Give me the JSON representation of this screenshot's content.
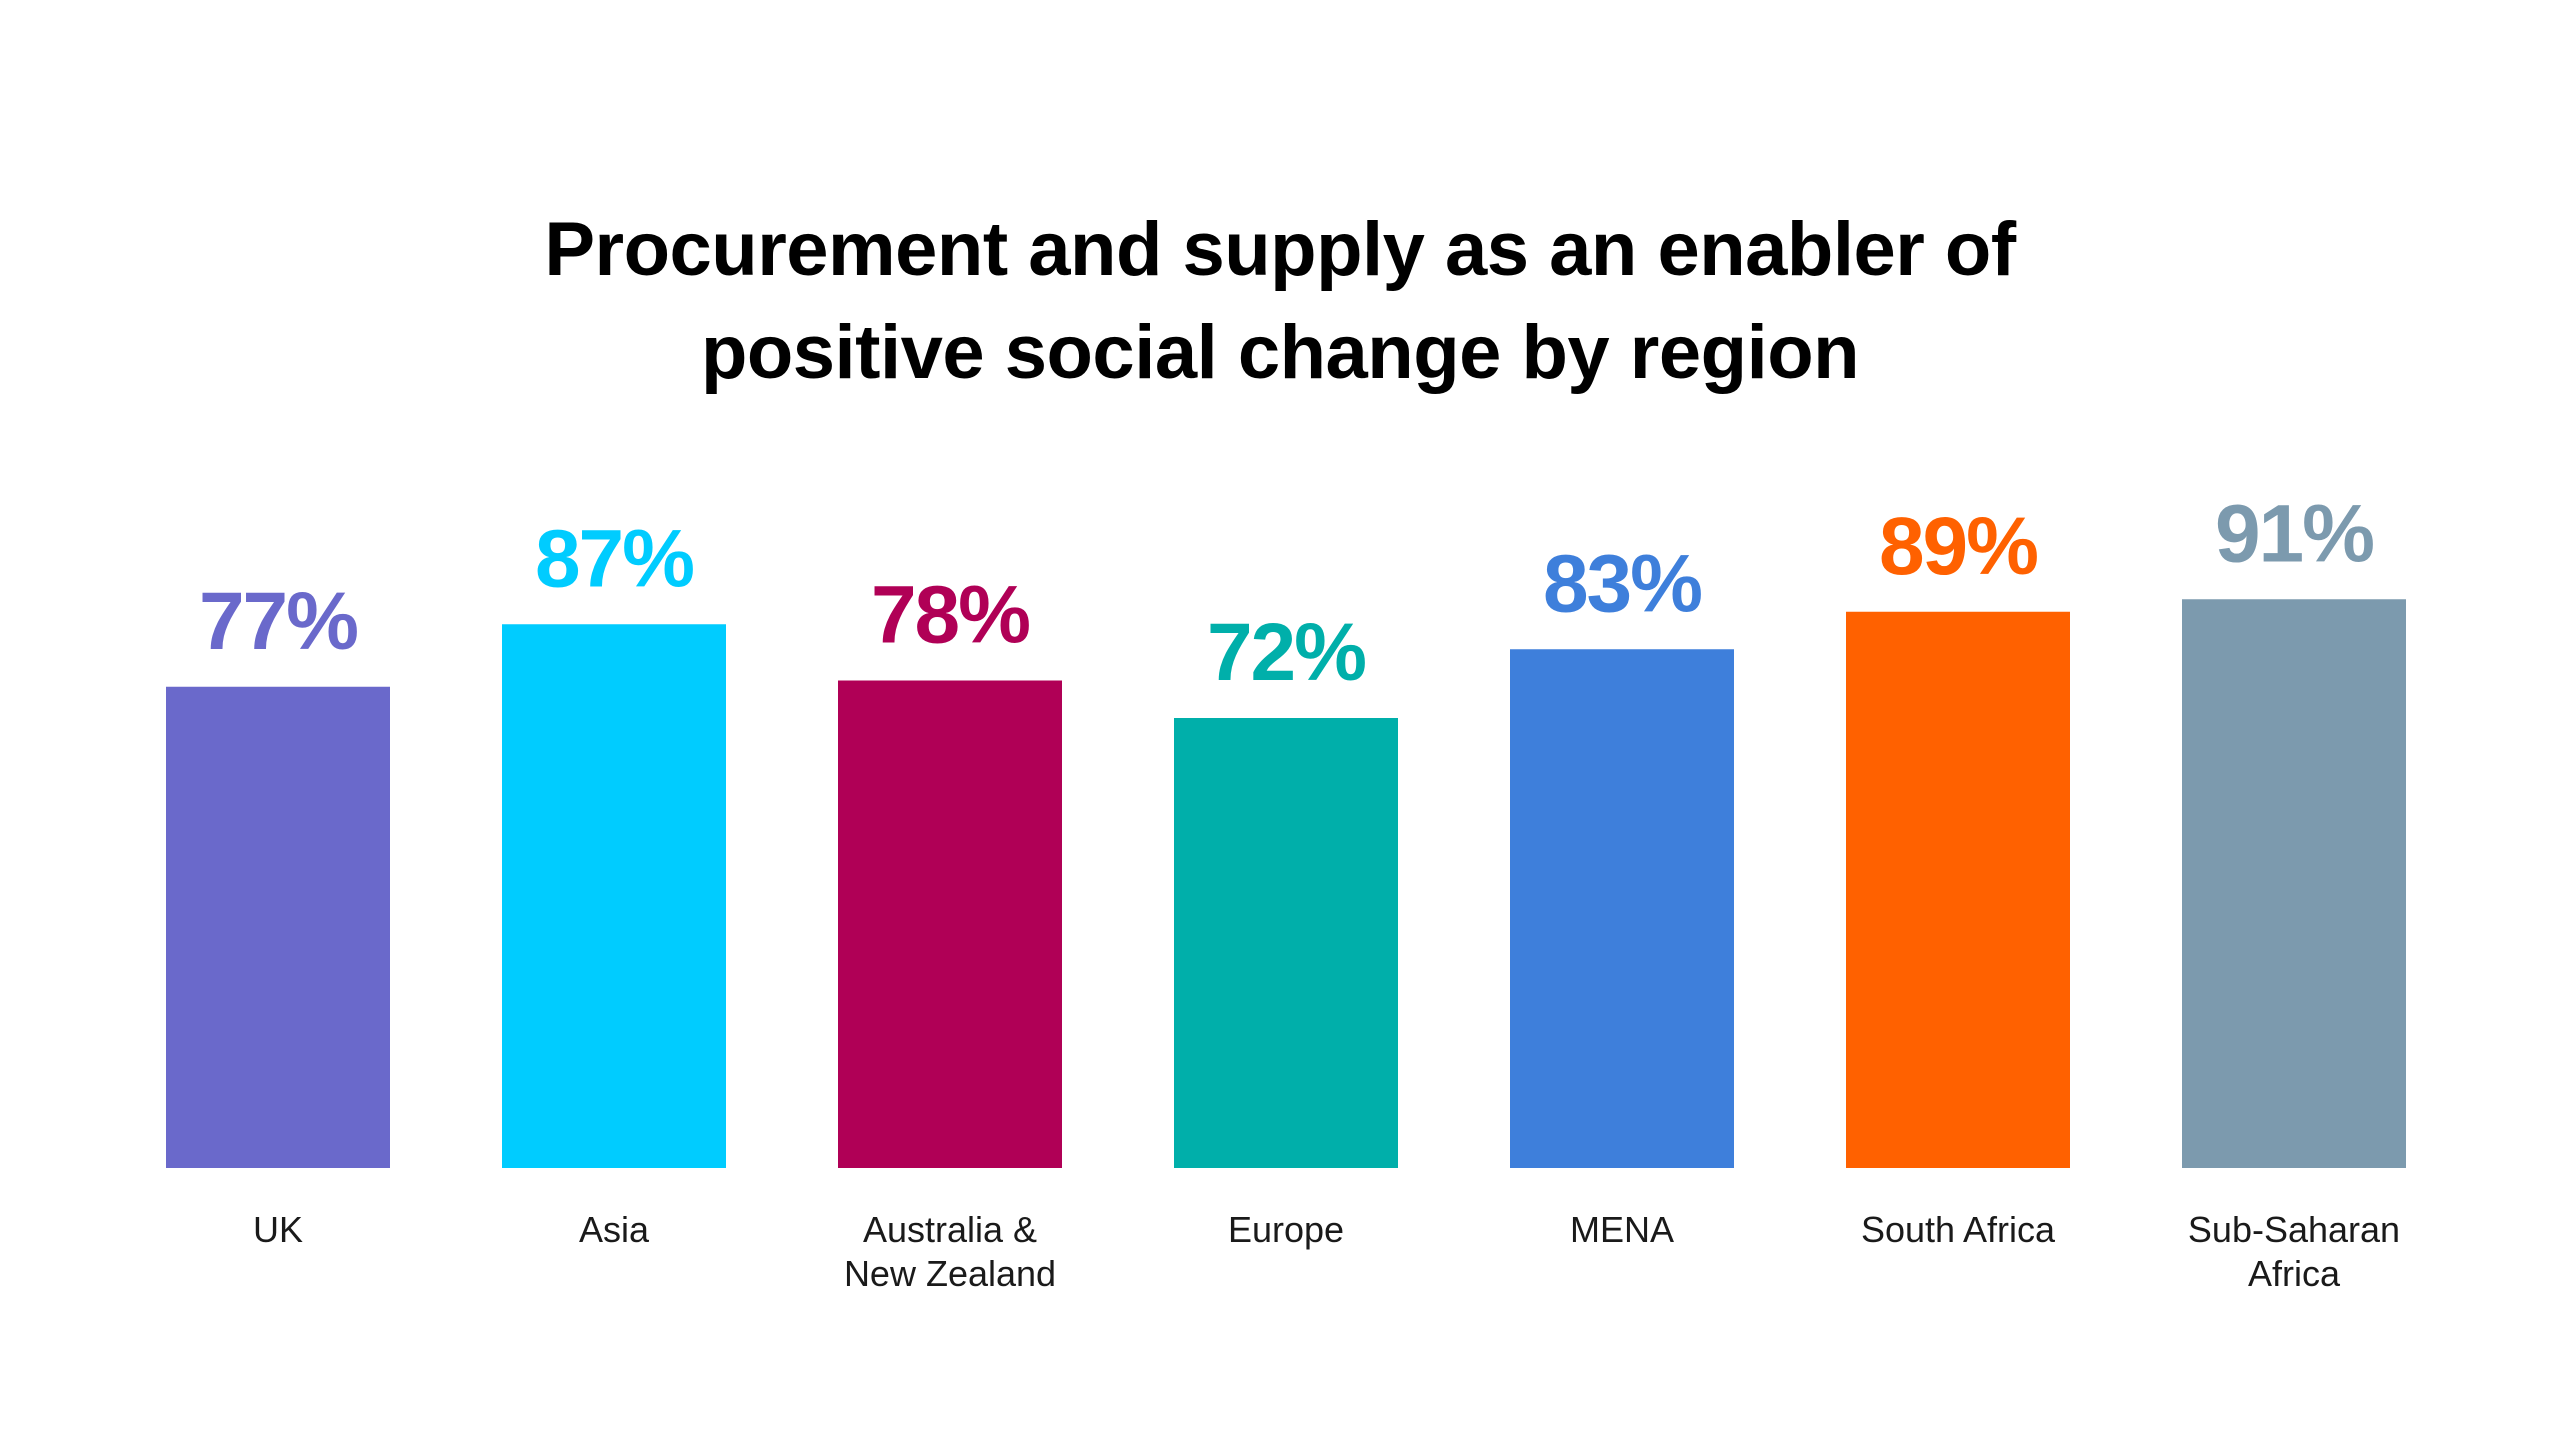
{
  "chart_data": {
    "type": "bar",
    "title_lines": [
      "Procurement and supply as an enabler of",
      "positive social change by region"
    ],
    "categories": [
      [
        "UK"
      ],
      [
        "Asia"
      ],
      [
        "Australia &",
        "New Zealand"
      ],
      [
        "Europe"
      ],
      [
        "MENA"
      ],
      [
        "South Africa"
      ],
      [
        "Sub-Saharan",
        "Africa"
      ]
    ],
    "values": [
      77,
      87,
      78,
      72,
      83,
      89,
      91
    ],
    "value_labels": [
      "77%",
      "87%",
      "78%",
      "72%",
      "83%",
      "89%",
      "91%"
    ],
    "colors": [
      "#6A69CB",
      "#00CCFF",
      "#B00056",
      "#00AFAA",
      "#3E7FDB",
      "#FF6100",
      "#7C9AAE"
    ],
    "ylim": [
      0,
      100
    ],
    "grid": false,
    "legend": "none",
    "xlabel": "",
    "ylabel": ""
  }
}
